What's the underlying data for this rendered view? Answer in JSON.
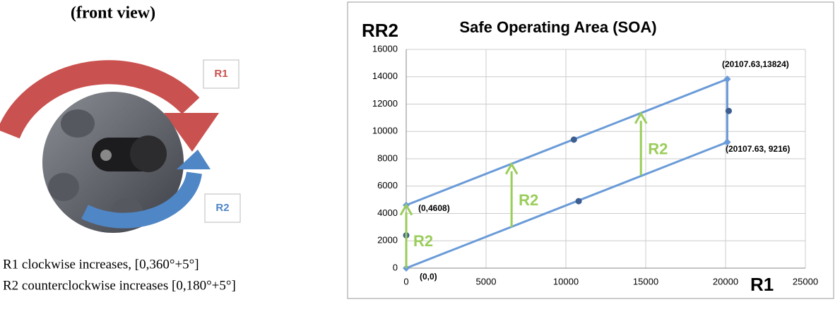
{
  "figure": {
    "title": "(front view)",
    "r1_label": "R1",
    "r2_label": "R2",
    "captions": [
      "R1 clockwise increases, [0,360°+5°]",
      "R2  counterclockwise increases [0,180°+5°]"
    ]
  },
  "chart_data": {
    "type": "line",
    "title": "Safe Operating Area (SOA)",
    "y_label": "RR2",
    "x_label": "R1",
    "xlim": [
      0,
      25000
    ],
    "xticks": [
      0,
      5000,
      10000,
      15000,
      20000,
      25000
    ],
    "ylim": [
      0,
      16000
    ],
    "yticks": [
      0,
      2000,
      4000,
      6000,
      8000,
      10000,
      12000,
      14000,
      16000
    ],
    "grid": true,
    "series": [
      {
        "color": "#6a9bd8",
        "x": [
          0,
          20107.63
        ],
        "values": [
          4608,
          13824
        ]
      },
      {
        "color": "#6a9bd8",
        "x": [
          0,
          20107.63
        ],
        "values": [
          0,
          9216
        ]
      },
      {
        "color": "#6a9bd8",
        "x": [
          20107.63,
          20107.63
        ],
        "values": [
          9216,
          13824
        ]
      }
    ],
    "points": {
      "color": "#3d5f8f",
      "x": [
        10500,
        10800,
        20200,
        0
      ],
      "values": [
        9400,
        4900,
        11500,
        2400
      ]
    },
    "arrows": {
      "color": "#9acd5a",
      "label": "R2",
      "x": [
        0,
        6600,
        14700
      ],
      "from": [
        0,
        3000,
        6800
      ],
      "to": [
        4608,
        7600,
        11300
      ]
    },
    "annotations": [
      "(0,4608)",
      "(0,0)",
      "(20107.63,13824)",
      "(20107.63, 9216)"
    ]
  }
}
